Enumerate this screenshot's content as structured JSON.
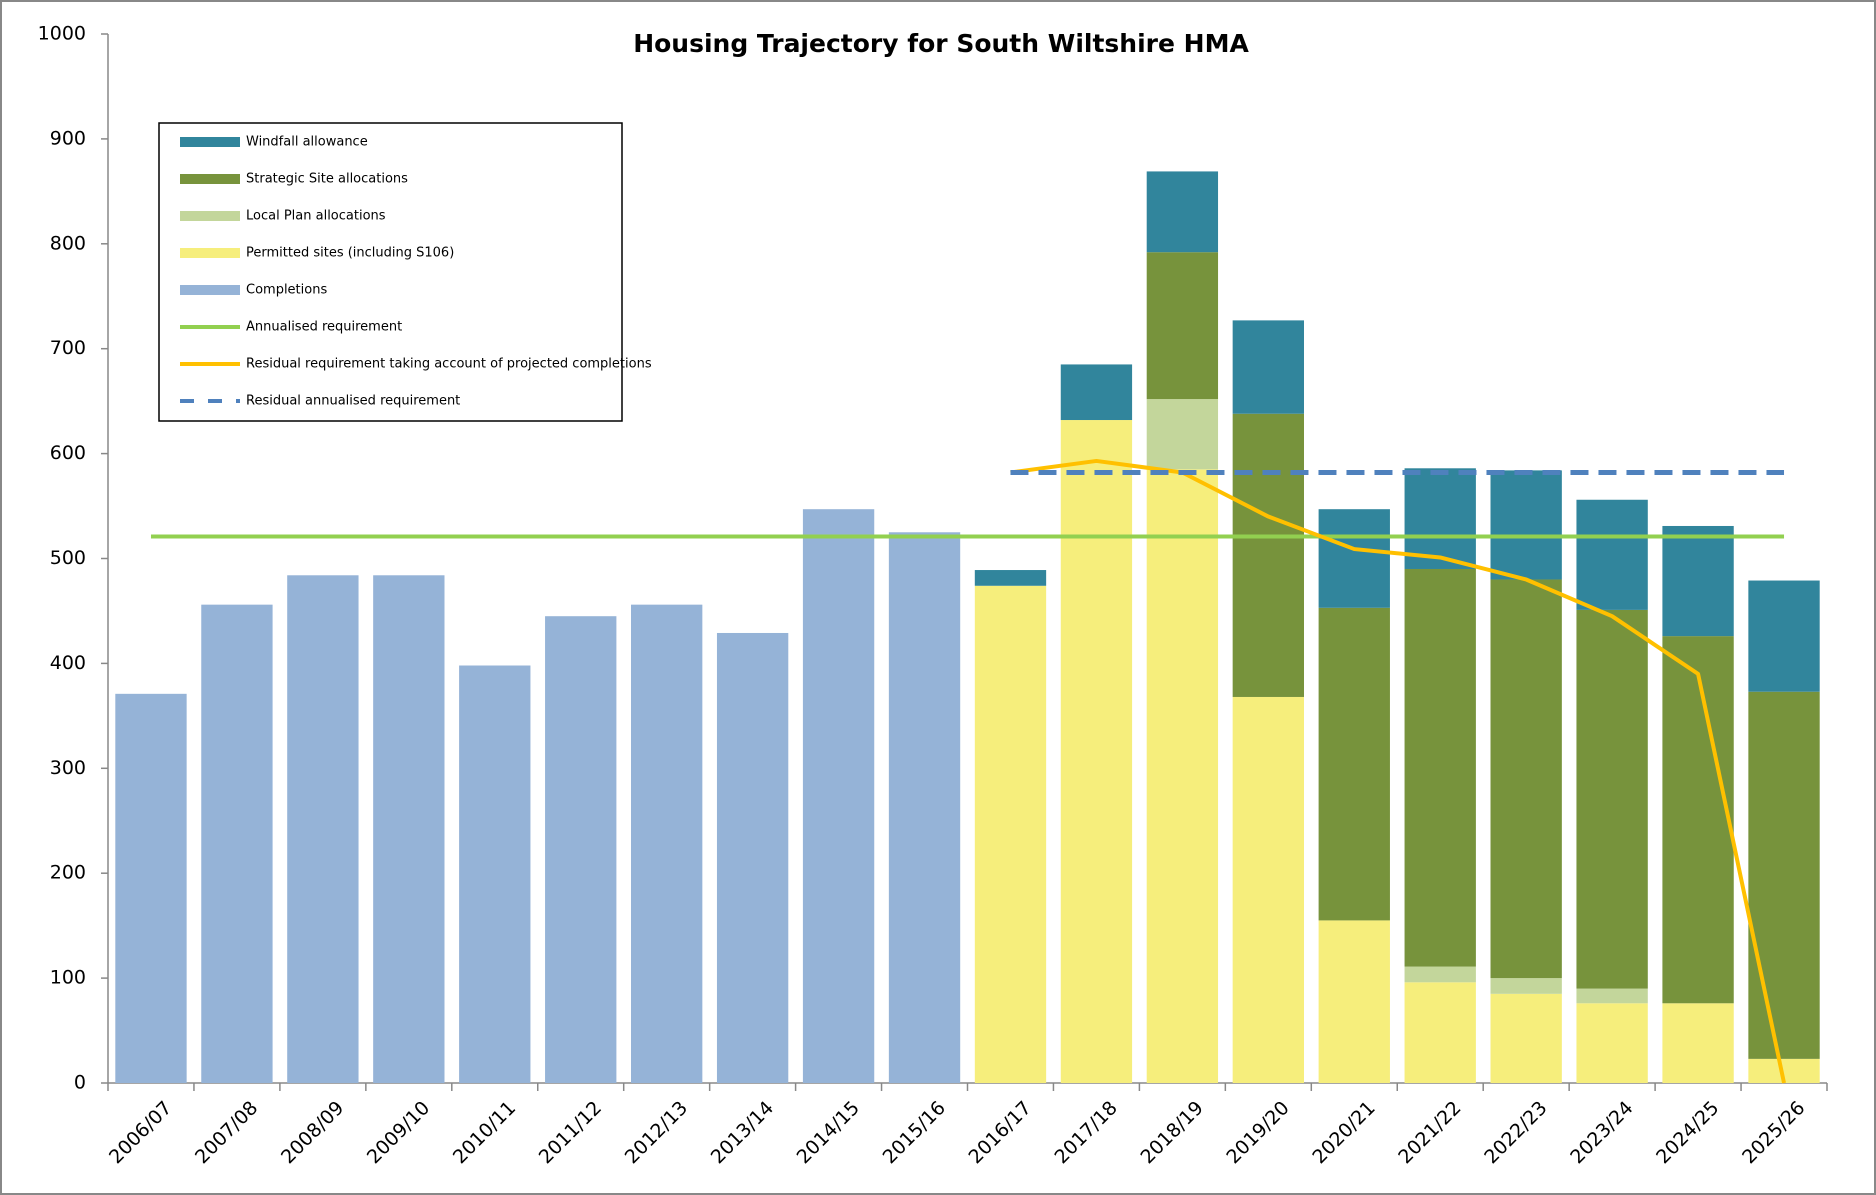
{
  "chart_data": {
    "type": "bar",
    "title": "Housing Trajectory for South Wiltshire HMA",
    "categories": [
      "2006/07",
      "2007/08",
      "2008/09",
      "2009/10",
      "2010/11",
      "2011/12",
      "2012/13",
      "2013/14",
      "2014/15",
      "2015/16",
      "2016/17",
      "2017/18",
      "2018/19",
      "2019/20",
      "2020/21",
      "2021/22",
      "2022/23",
      "2023/24",
      "2024/25",
      "2025/26"
    ],
    "series": [
      {
        "name": "Windfall allowance",
        "type": "bar",
        "color": "#31859c",
        "values": [
          null,
          null,
          null,
          null,
          null,
          null,
          null,
          null,
          null,
          null,
          15,
          53,
          77,
          89,
          94,
          96,
          104,
          105,
          105,
          106
        ]
      },
      {
        "name": "Strategic Site allocations",
        "type": "bar",
        "color": "#77933c",
        "values": [
          null,
          null,
          null,
          null,
          null,
          null,
          null,
          null,
          null,
          null,
          0,
          0,
          140,
          270,
          298,
          379,
          380,
          361,
          350,
          350
        ]
      },
      {
        "name": "Local Plan allocations",
        "type": "bar",
        "color": "#c3d69b",
        "values": [
          null,
          null,
          null,
          null,
          null,
          null,
          null,
          null,
          null,
          null,
          0,
          0,
          67,
          0,
          0,
          15,
          15,
          14,
          0,
          0
        ]
      },
      {
        "name": "Permitted sites (including S106)",
        "type": "bar",
        "color": "#f6ee7c",
        "values": [
          null,
          null,
          null,
          null,
          null,
          null,
          null,
          null,
          null,
          null,
          474,
          632,
          585,
          368,
          155,
          96,
          85,
          76,
          76,
          23
        ]
      },
      {
        "name": "Completions",
        "type": "bar",
        "color": "#95b3d7",
        "values": [
          371,
          456,
          484,
          484,
          398,
          445,
          456,
          429,
          547,
          525,
          null,
          null,
          null,
          null,
          null,
          null,
          null,
          null,
          null,
          null
        ]
      },
      {
        "name": "Annualised requirement",
        "type": "line",
        "color": "#92d050",
        "dashed": false,
        "values": [
          521,
          521,
          521,
          521,
          521,
          521,
          521,
          521,
          521,
          521,
          521,
          521,
          521,
          521,
          521,
          521,
          521,
          521,
          521,
          521
        ]
      },
      {
        "name": "Residual requirement taking account of projected completions",
        "type": "line",
        "color": "#ffc000",
        "dashed": false,
        "values": [
          null,
          null,
          null,
          null,
          null,
          null,
          null,
          null,
          null,
          null,
          582,
          593,
          582,
          540,
          509,
          501,
          480,
          445,
          390,
          0
        ]
      },
      {
        "name": "Residual annualised requirement",
        "type": "line",
        "color": "#4f81bd",
        "dashed": true,
        "values": [
          null,
          null,
          null,
          null,
          null,
          null,
          null,
          null,
          null,
          null,
          582,
          582,
          582,
          582,
          582,
          582,
          582,
          582,
          582,
          582
        ]
      }
    ],
    "ylim": [
      0,
      1000
    ],
    "yticks": [
      0,
      100,
      200,
      300,
      400,
      500,
      600,
      700,
      800,
      900,
      1000
    ],
    "grid": false,
    "legend": "upper left"
  }
}
